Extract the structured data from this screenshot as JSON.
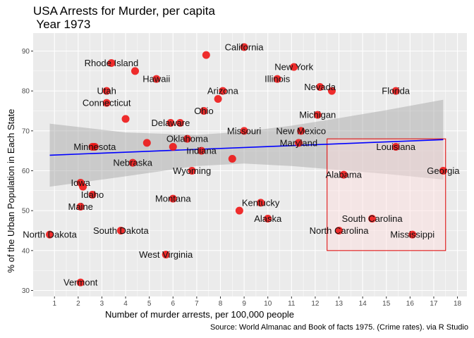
{
  "title": "USA Arrests for Murder, per capita\n Year 1973",
  "caption": "Source: World Almanac and Book of facts 1975. (Crime rates). via R Studio",
  "colors": {
    "panel": "#ebebeb",
    "grid": "#ffffff",
    "point": "#ee1111",
    "trend": "#0000ff",
    "ribbon": "#999999",
    "highlight_fill": "#ffdddd",
    "highlight_stroke": "#dd0000"
  },
  "chart_data": {
    "type": "scatter",
    "xlabel": "Number of murder arrests, per 100,000 people",
    "ylabel": "% of the Urban Population in Each State",
    "xlim": [
      0.1,
      18.4
    ],
    "ylim": [
      28.5,
      94.5
    ],
    "x_ticks": [
      "1",
      "2",
      "3",
      "4",
      "5",
      "6",
      "7",
      "8",
      "9",
      "10",
      "11",
      "12",
      "13",
      "14",
      "15",
      "16",
      "17",
      "18"
    ],
    "y_ticks": [
      "30",
      "40",
      "50",
      "60",
      "70",
      "80",
      "90"
    ],
    "grid": true,
    "points": [
      {
        "x": 0.8,
        "y": 44,
        "label": "North Dakota"
      },
      {
        "x": 2.1,
        "y": 32,
        "label": "Vermont"
      },
      {
        "x": 2.1,
        "y": 57,
        "label": "Iowa"
      },
      {
        "x": 2.1,
        "y": 51,
        "label": "Maine"
      },
      {
        "x": 2.2,
        "y": 56,
        "label": ""
      },
      {
        "x": 2.6,
        "y": 54,
        "label": "Idaho"
      },
      {
        "x": 2.6,
        "y": 66,
        "label": ""
      },
      {
        "x": 2.7,
        "y": 66,
        "label": "Minnesota"
      },
      {
        "x": 3.2,
        "y": 77,
        "label": "Connecticut"
      },
      {
        "x": 3.2,
        "y": 80,
        "label": "Utah"
      },
      {
        "x": 3.4,
        "y": 87,
        "label": "Rhode Island"
      },
      {
        "x": 3.8,
        "y": 45,
        "label": "South Dakota"
      },
      {
        "x": 4.0,
        "y": 73,
        "label": ""
      },
      {
        "x": 4.3,
        "y": 62,
        "label": "Nebraska"
      },
      {
        "x": 4.4,
        "y": 85,
        "label": ""
      },
      {
        "x": 4.9,
        "y": 67,
        "label": ""
      },
      {
        "x": 5.3,
        "y": 83,
        "label": "Hawaii"
      },
      {
        "x": 5.7,
        "y": 39,
        "label": "West Virginia"
      },
      {
        "x": 5.9,
        "y": 72,
        "label": "Delaware"
      },
      {
        "x": 6.0,
        "y": 53,
        "label": "Montana"
      },
      {
        "x": 6.0,
        "y": 66,
        "label": ""
      },
      {
        "x": 6.3,
        "y": 72,
        "label": ""
      },
      {
        "x": 6.6,
        "y": 68,
        "label": "Oklahoma"
      },
      {
        "x": 6.8,
        "y": 60,
        "label": "Wyoming"
      },
      {
        "x": 7.2,
        "y": 65,
        "label": "Indiana"
      },
      {
        "x": 7.3,
        "y": 75,
        "label": "Ohio"
      },
      {
        "x": 7.4,
        "y": 89,
        "label": ""
      },
      {
        "x": 7.9,
        "y": 78,
        "label": ""
      },
      {
        "x": 8.1,
        "y": 80,
        "label": "Arizona"
      },
      {
        "x": 8.5,
        "y": 63,
        "label": ""
      },
      {
        "x": 8.8,
        "y": 50,
        "label": ""
      },
      {
        "x": 9.0,
        "y": 91,
        "label": "California"
      },
      {
        "x": 9.0,
        "y": 70,
        "label": "Missouri"
      },
      {
        "x": 9.7,
        "y": 52,
        "label": "Kentucky"
      },
      {
        "x": 10.0,
        "y": 48,
        "label": "Alaska"
      },
      {
        "x": 10.4,
        "y": 83,
        "label": "Illinois"
      },
      {
        "x": 11.1,
        "y": 86,
        "label": "New York"
      },
      {
        "x": 11.3,
        "y": 67,
        "label": "Maryland"
      },
      {
        "x": 11.4,
        "y": 70,
        "label": "New Mexico"
      },
      {
        "x": 12.1,
        "y": 74,
        "label": "Michigan"
      },
      {
        "x": 12.2,
        "y": 81,
        "label": "Nevada"
      },
      {
        "x": 12.7,
        "y": 80,
        "label": ""
      },
      {
        "x": 13.0,
        "y": 45,
        "label": "North Carolina"
      },
      {
        "x": 13.2,
        "y": 59,
        "label": "Alabama"
      },
      {
        "x": 14.4,
        "y": 48,
        "label": "South Carolina"
      },
      {
        "x": 15.4,
        "y": 80,
        "label": "Florida"
      },
      {
        "x": 15.4,
        "y": 66,
        "label": "Louisiana"
      },
      {
        "x": 16.1,
        "y": 44,
        "label": "Mississippi"
      },
      {
        "x": 17.4,
        "y": 60,
        "label": "Georgia"
      }
    ],
    "trend": {
      "x0": 0.8,
      "y0": 63.9,
      "x1": 17.4,
      "y1": 67.8
    },
    "ribbon": {
      "x": [
        0.8,
        4.0,
        7.0,
        9.0,
        11.0,
        13.0,
        15.0,
        17.4
      ],
      "upper": [
        71.8,
        69.6,
        69.0,
        69.8,
        71.3,
        73.2,
        75.2,
        77.8
      ],
      "lower": [
        56.0,
        58.6,
        61.2,
        61.8,
        61.2,
        60.2,
        59.2,
        57.8
      ]
    },
    "highlight_region": {
      "x0": 12.5,
      "x1": 17.5,
      "y0": 40,
      "y1": 68
    }
  }
}
